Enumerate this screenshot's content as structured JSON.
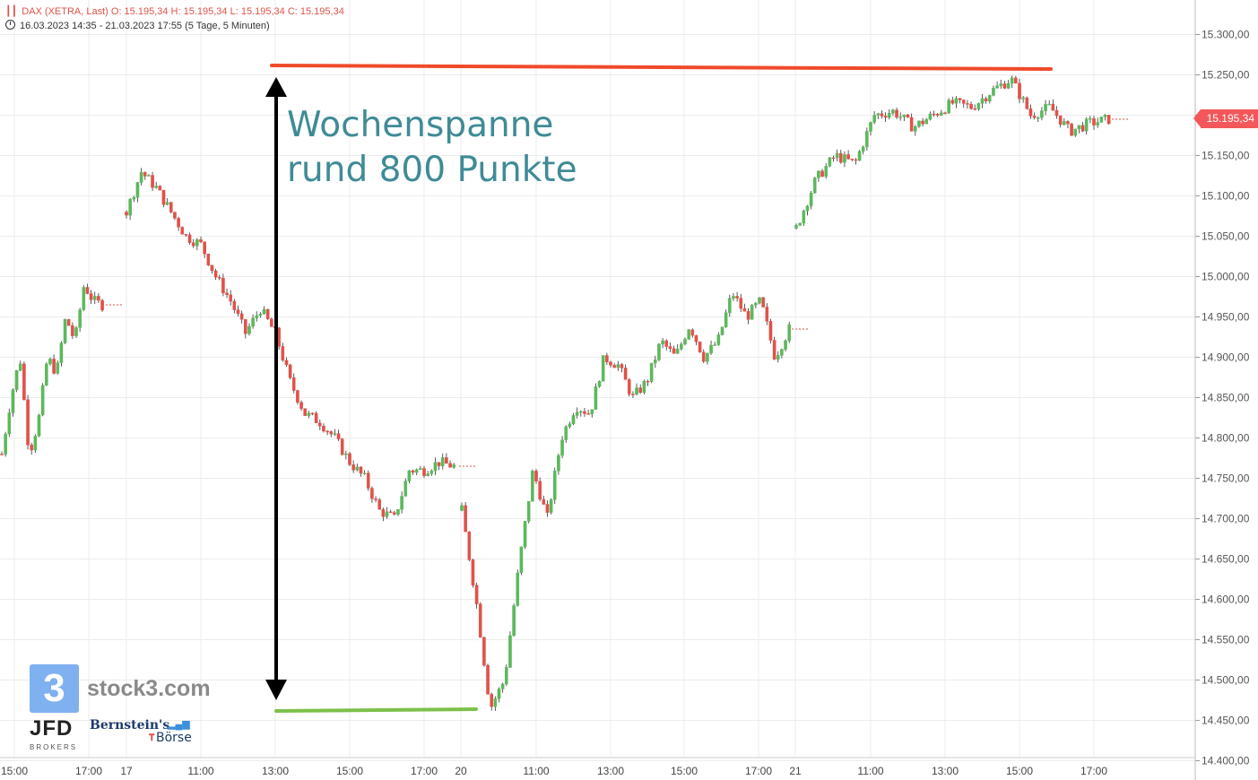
{
  "header": {
    "instrument_line": "DAX (XETRA, Last)  O: 15.195,34  H: 15.195,34  L: 15.195,34  C: 15.195,34",
    "range_line": "16.03.2023 14:35 - 21.03.2023 17:55   (5 Tage, 5 Minuten)"
  },
  "annotation": {
    "line1": "Wochenspanne",
    "line2": "rund 800 Punkte"
  },
  "last_price_label": "15.195,34",
  "logos": {
    "stock3_mark": "3",
    "stock3_text": "stock3.com",
    "jfd": "JFD",
    "jfd_sub": "BROKERS",
    "bernstein": "Bernstein's",
    "borse": "Börse"
  },
  "colors": {
    "up": "#5cb85c",
    "down": "#e0524a",
    "resistance_line": "#f04a2a",
    "support_line": "#7cc04a",
    "annotation_text": "#3f8b96",
    "grid": "#ececec"
  },
  "chart_data": {
    "type": "candlestick",
    "title": "",
    "ylabel": "",
    "xlabel": "",
    "ylim": [
      14380,
      15340
    ],
    "y_ticks": [
      "15.300,00",
      "15.250,00",
      "15.200,00",
      "15.150,00",
      "15.100,00",
      "15.050,00",
      "15.000,00",
      "14.950,00",
      "14.900,00",
      "14.850,00",
      "14.800,00",
      "14.750,00",
      "14.700,00",
      "14.650,00",
      "14.600,00",
      "14.550,00",
      "14.500,00",
      "14.450,00",
      "14.400,00"
    ],
    "x_ticks": [
      "15:00",
      "17:00",
      "17",
      "11:00",
      "13:00",
      "15:00",
      "17:00",
      "20",
      "11:00",
      "13:00",
      "15:00",
      "17:00",
      "21",
      "11:00",
      "13:00",
      "15:00",
      "17:00"
    ],
    "resistance_level": 15258,
    "support_level": 14461,
    "range_points": 800,
    "grid": true,
    "sessions": [
      {
        "date": "16.03.2023",
        "path": [
          14780,
          14850,
          14900,
          14780,
          14820,
          14900,
          14880,
          14950,
          14920,
          14990,
          14970,
          14965
        ]
      },
      {
        "date": "17.03.2023",
        "path": [
          15080,
          15130,
          15110,
          15080,
          15050,
          15040,
          15000,
          14970,
          14930,
          14960,
          14930,
          14870,
          14830,
          14820,
          14800,
          14770,
          14750,
          14710,
          14700,
          14760,
          14760,
          14770,
          14765
        ]
      },
      {
        "date": "20.03.2023",
        "path": [
          14710,
          14600,
          14465,
          14500,
          14640,
          14760,
          14700,
          14800,
          14840,
          14830,
          14900,
          14890,
          14850,
          14870,
          14920,
          14900,
          14940,
          14900,
          14920,
          14980,
          14950,
          14970,
          14900,
          14935
        ]
      },
      {
        "date": "21.03.2023",
        "path": [
          15060,
          15120,
          15150,
          15140,
          15200,
          15205,
          15185,
          15200,
          15215,
          15210,
          15230,
          15245,
          15200,
          15210,
          15180,
          15190,
          15195
        ]
      }
    ],
    "last_close": 15195.34
  }
}
